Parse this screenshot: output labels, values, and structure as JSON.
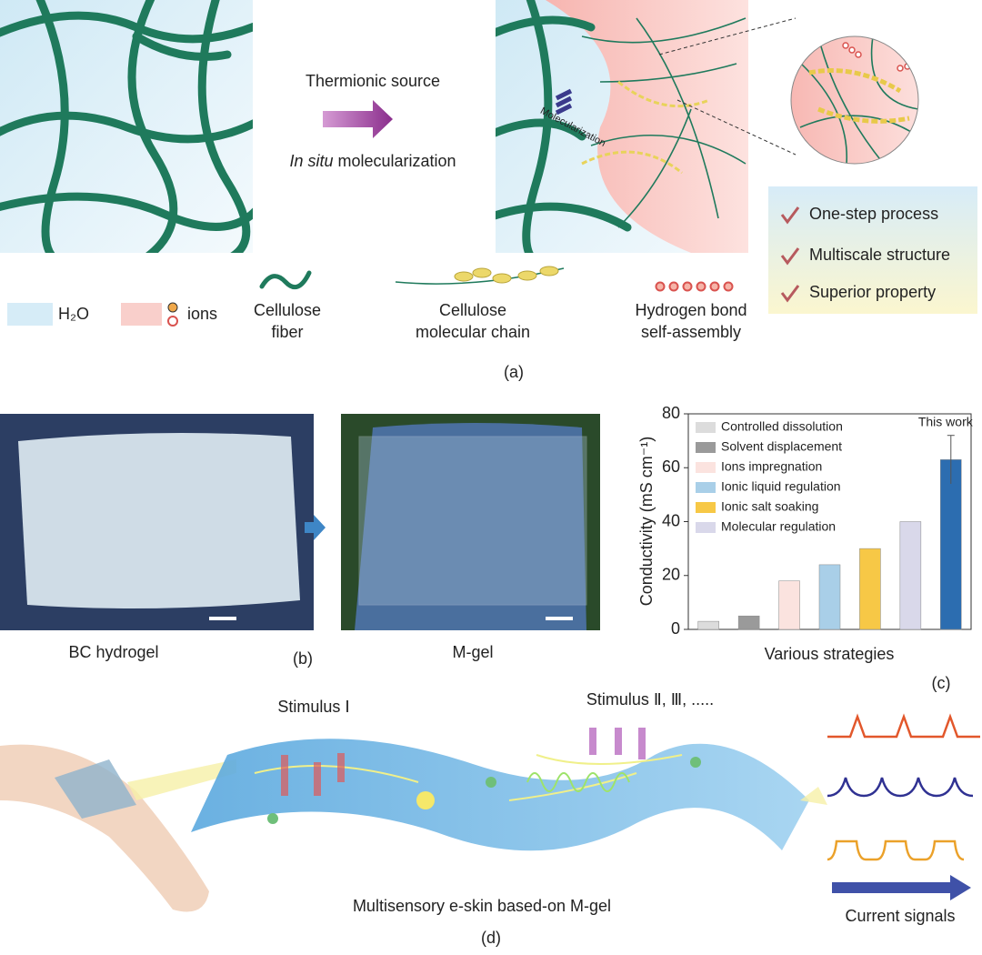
{
  "panel_a": {
    "label": "(a)",
    "arrow_top": "Thermionic source",
    "arrow_bottom_italic": "In situ",
    "arrow_bottom_rest": " molecularization",
    "inset": "Molecularization",
    "checklist": [
      "One-step process",
      "Multiscale structure",
      "Superior property"
    ],
    "legend": {
      "water": "H₂O",
      "ions": "ions",
      "fiber": [
        "Cellulose",
        "fiber"
      ],
      "chain": [
        "Cellulose",
        "molecular chain"
      ],
      "hbond": [
        "Hydrogen bond",
        "self-assembly"
      ]
    }
  },
  "panel_b": {
    "label": "(b)",
    "left": "BC hydrogel",
    "right": "M-gel"
  },
  "panel_c": {
    "label": "(c)"
  },
  "chart_data": {
    "type": "bar",
    "ylabel": "Conductivity (mS cm⁻¹)",
    "xlabel": "Various strategies",
    "annotation": "This work",
    "categories": [
      null,
      null,
      null,
      null,
      null,
      null,
      null
    ],
    "values": [
      3,
      5,
      18,
      24,
      30,
      40,
      63
    ],
    "errors": [
      null,
      null,
      null,
      null,
      null,
      null,
      9
    ],
    "colors": [
      "#dcdcdc",
      "#9a9a9a",
      "#fbe3df",
      "#a9cfe8",
      "#f7c846",
      "#d9d8ea",
      "#2c6db0"
    ],
    "legend": [
      {
        "name": "Controlled dissolution",
        "color": "#dcdcdc"
      },
      {
        "name": "Solvent displacement",
        "color": "#9a9a9a"
      },
      {
        "name": "Ions impregnation",
        "color": "#fbe3df"
      },
      {
        "name": "Ionic liquid regulation",
        "color": "#a9cfe8"
      },
      {
        "name": "Ionic salt soaking",
        "color": "#f7c846"
      },
      {
        "name": "Molecular regulation",
        "color": "#d9d8ea"
      }
    ],
    "ylim": [
      0,
      80
    ],
    "yticks": [
      0,
      20,
      40,
      60,
      80
    ]
  },
  "panel_d": {
    "label": "(d)",
    "stimulus_1": "Stimulus Ⅰ",
    "stimulus_2": "Stimulus Ⅱ, Ⅲ, .....",
    "caption": "Multisensory e-skin based-on M-gel",
    "signals": "Current signals"
  }
}
